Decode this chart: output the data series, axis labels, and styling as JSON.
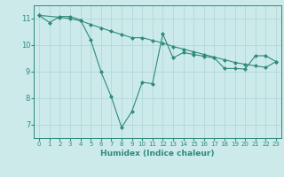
{
  "line1_x": [
    0,
    1,
    2,
    3,
    4,
    5,
    6,
    7,
    8,
    9,
    10,
    11,
    12,
    13,
    14,
    15,
    16,
    17,
    18,
    19,
    20,
    21,
    22,
    23
  ],
  "line1_y": [
    11.12,
    10.85,
    11.08,
    11.08,
    10.95,
    10.2,
    9.0,
    8.05,
    6.9,
    7.5,
    8.6,
    8.55,
    10.42,
    9.52,
    9.72,
    9.65,
    9.58,
    9.52,
    9.12,
    9.12,
    9.1,
    9.6,
    9.6,
    9.38
  ],
  "line2_x": [
    0,
    2,
    3,
    4,
    5,
    6,
    7,
    8,
    9,
    10,
    11,
    12,
    13,
    14,
    15,
    16,
    17,
    18,
    19,
    20,
    21,
    22,
    23
  ],
  "line2_y": [
    11.12,
    11.05,
    11.0,
    10.92,
    10.78,
    10.65,
    10.52,
    10.4,
    10.28,
    10.28,
    10.18,
    10.08,
    9.95,
    9.85,
    9.75,
    9.65,
    9.55,
    9.45,
    9.35,
    9.28,
    9.22,
    9.16,
    9.38
  ],
  "color": "#2e8b7a",
  "bg_color": "#cceaea",
  "grid_color": "#aed4d4",
  "xlabel": "Humidex (Indice chaleur)",
  "xlim": [
    -0.5,
    23.5
  ],
  "ylim": [
    6.5,
    11.5
  ],
  "yticks": [
    7,
    8,
    9,
    10,
    11
  ],
  "xticks": [
    0,
    1,
    2,
    3,
    4,
    5,
    6,
    7,
    8,
    9,
    10,
    11,
    12,
    13,
    14,
    15,
    16,
    17,
    18,
    19,
    20,
    21,
    22,
    23
  ]
}
